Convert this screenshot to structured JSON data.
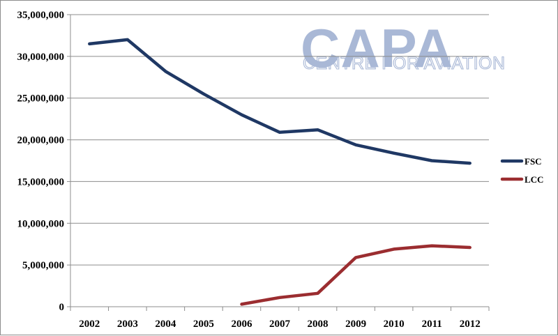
{
  "logo": {
    "main": "CAPA",
    "sub": "CENTRE FOR AVIATION"
  },
  "chart_data": {
    "type": "line",
    "title": "",
    "xlabel": "",
    "ylabel": "",
    "categories": [
      "2002",
      "2003",
      "2004",
      "2005",
      "2006",
      "2007",
      "2008",
      "2009",
      "2010",
      "2011",
      "2012"
    ],
    "ylim": [
      0,
      35000000
    ],
    "yticks": [
      0,
      5000000,
      10000000,
      15000000,
      20000000,
      25000000,
      30000000,
      35000000
    ],
    "ytick_labels": [
      "0",
      "5,000,000",
      "10,000,000",
      "15,000,000",
      "20,000,000",
      "25,000,000",
      "30,000,000",
      "35,000,000"
    ],
    "grid": "horizontal",
    "legend": "right",
    "series": [
      {
        "name": "FSC",
        "color": "#1f3864",
        "values": [
          31500000,
          32000000,
          28200000,
          25500000,
          23000000,
          20900000,
          21200000,
          19400000,
          18400000,
          17500000,
          17200000
        ]
      },
      {
        "name": "LCC",
        "color": "#9b2d30",
        "values": [
          null,
          null,
          null,
          null,
          300000,
          1100000,
          1600000,
          5900000,
          6900000,
          7300000,
          7100000
        ]
      }
    ]
  }
}
